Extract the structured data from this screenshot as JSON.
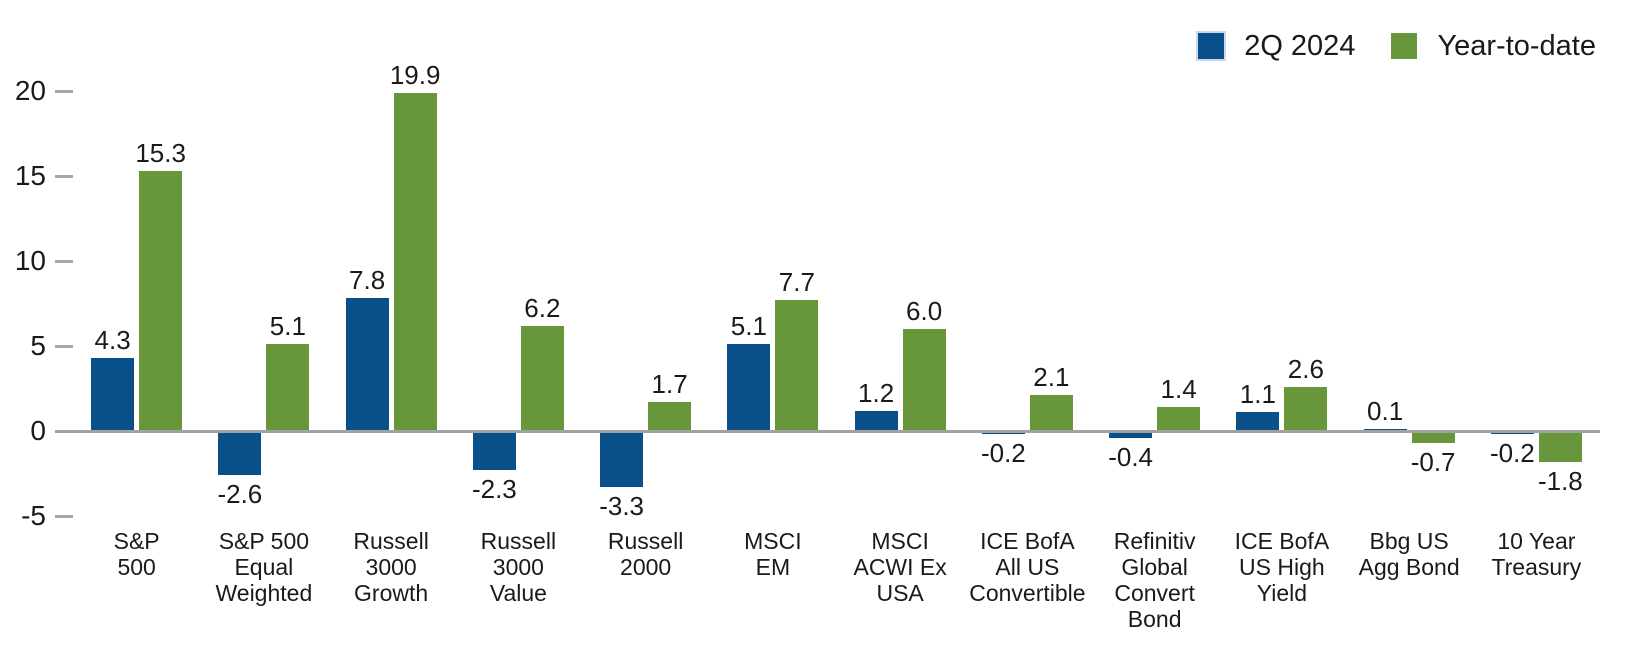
{
  "chart_data": {
    "type": "bar",
    "title": "",
    "categories": [
      "S&P 500",
      "S&P 500 Equal Weighted",
      "Russell 3000 Growth",
      "Russell 3000 Value",
      "Russell 2000",
      "MSCI EM",
      "MSCI ACWI Ex USA",
      "ICE BofA All US Convertible",
      "Refinitiv Global Convert Bond",
      "ICE BofA US High Yield",
      "Bbg US Agg Bond",
      "10 Year Treasury"
    ],
    "category_label_lines": [
      [
        "S&P",
        "500"
      ],
      [
        "S&P 500",
        "Equal",
        "Weighted"
      ],
      [
        "Russell",
        "3000",
        "Growth"
      ],
      [
        "Russell",
        "3000",
        "Value"
      ],
      [
        "Russell",
        "2000"
      ],
      [
        "MSCI",
        "EM"
      ],
      [
        "MSCI",
        "ACWI Ex",
        "USA"
      ],
      [
        "ICE BofA",
        "All US",
        "Convertible"
      ],
      [
        "Refinitiv",
        "Global",
        "Convert",
        "Bond"
      ],
      [
        "ICE BofA",
        "US High",
        "Yield"
      ],
      [
        "Bbg US",
        "Agg Bond"
      ],
      [
        "10 Year",
        "Treasury"
      ]
    ],
    "series": [
      {
        "name": "2Q 2024",
        "color": "#09508A",
        "values": [
          4.3,
          -2.6,
          7.8,
          -2.3,
          -3.3,
          5.1,
          1.2,
          -0.2,
          -0.4,
          1.1,
          0.1,
          -0.2
        ]
      },
      {
        "name": "Year-to-date",
        "color": "#68963B",
        "values": [
          15.3,
          5.1,
          19.9,
          6.2,
          1.7,
          7.7,
          6.0,
          2.1,
          1.4,
          2.6,
          -0.7,
          -1.8
        ]
      }
    ],
    "yticks": [
      -5,
      0,
      5,
      10,
      15,
      20
    ],
    "ylim": [
      -5,
      20
    ],
    "grid": false,
    "legend_position": "top-right",
    "axis_color": "#A6A6A6",
    "text_color": "#1A1A1A",
    "background_color": "#FFFFFF"
  }
}
